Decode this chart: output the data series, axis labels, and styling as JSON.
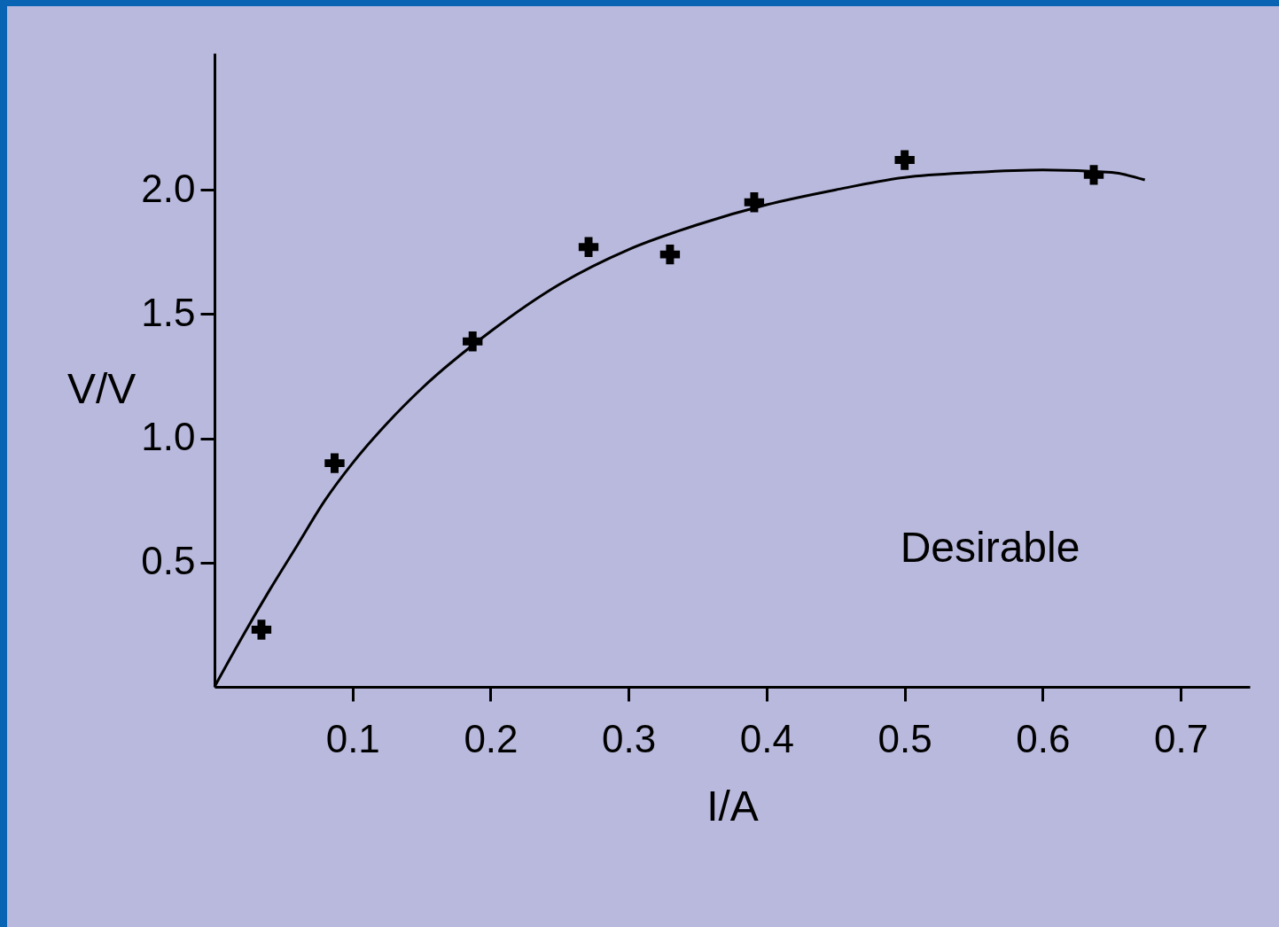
{
  "chart_data": {
    "type": "scatter",
    "xlabel": "I/A",
    "ylabel": "V/V",
    "annotations": [
      "Desirable"
    ],
    "marker": "cross",
    "grid": false,
    "xlim": [
      0,
      0.75
    ],
    "ylim": [
      0,
      2.55
    ],
    "xticks": [
      0.1,
      0.2,
      0.3,
      0.4,
      0.5,
      0.6,
      0.7
    ],
    "yticks": [
      {
        "value": 0.5,
        "label": "0.5"
      },
      {
        "value": 1,
        "label": "1.0"
      },
      {
        "value": 1.5,
        "label": "1.5"
      },
      {
        "value": 2,
        "label": "2.0"
      }
    ],
    "x": [
      0.034,
      0.087,
      0.187,
      0.271,
      0.33,
      0.391,
      0.5,
      0.637
    ],
    "series": [
      {
        "color": "#000000",
        "values": [
          0.23,
          0.9,
          1.39,
          1.77,
          1.74,
          1.95,
          2.12,
          2.06
        ]
      },
      {
        "type": "line",
        "color": "#000000",
        "marker": "none",
        "x": [
          0,
          0.02,
          0.04,
          0.06,
          0.08,
          0.1,
          0.125,
          0.15,
          0.2,
          0.25,
          0.3,
          0.35,
          0.4,
          0.45,
          0.5,
          0.55,
          0.6,
          0.65,
          0.674
        ],
        "values": [
          0,
          0.2,
          0.39,
          0.57,
          0.75,
          0.9,
          1.06,
          1.2,
          1.43,
          1.62,
          1.76,
          1.86,
          1.94,
          2.0,
          2.05,
          2.07,
          2.08,
          2.07,
          2.04
        ]
      }
    ]
  }
}
